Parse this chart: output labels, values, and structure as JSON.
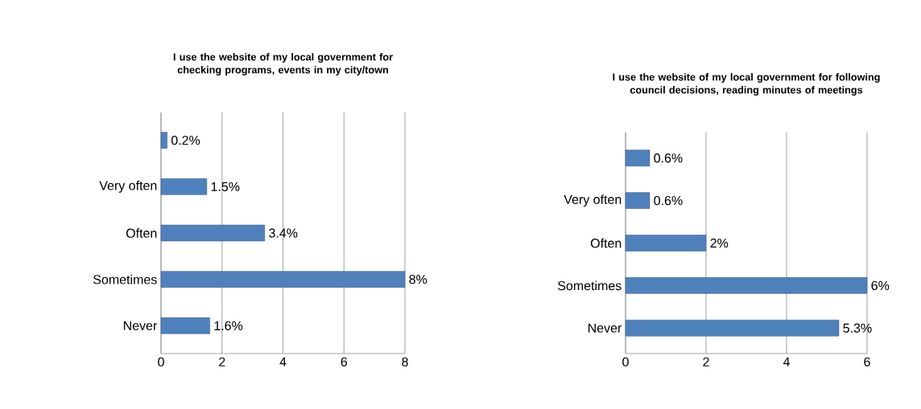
{
  "chart_data": [
    {
      "type": "bar",
      "orientation": "horizontal",
      "title": "I use the website of my local government for checking programs, events in my city/town",
      "categories": [
        null,
        "Very often",
        "Often",
        "Sometimes",
        "Never"
      ],
      "values": [
        0.2,
        1.5,
        3.4,
        8,
        1.6
      ],
      "value_labels": [
        "0.2%",
        "1.5%",
        "3.4%",
        "8%",
        "1.6%"
      ],
      "color": "#4f81bd",
      "xlim": [
        0,
        8
      ],
      "xticks": [
        0,
        2,
        4,
        6,
        8
      ],
      "grid": "x"
    },
    {
      "type": "bar",
      "orientation": "horizontal",
      "title": "I use the website of my local government for following council decisions, reading minutes of meetings",
      "categories": [
        null,
        "Very often",
        "Often",
        "Sometimes",
        "Never"
      ],
      "values": [
        0.6,
        0.6,
        2,
        6,
        5.3
      ],
      "value_labels": [
        "0.6%",
        "0.6%",
        "2%",
        "6%",
        "5.3%"
      ],
      "color": "#4f81bd",
      "xlim": [
        0,
        6
      ],
      "xticks": [
        0,
        2,
        4,
        6
      ],
      "grid": "x"
    }
  ]
}
